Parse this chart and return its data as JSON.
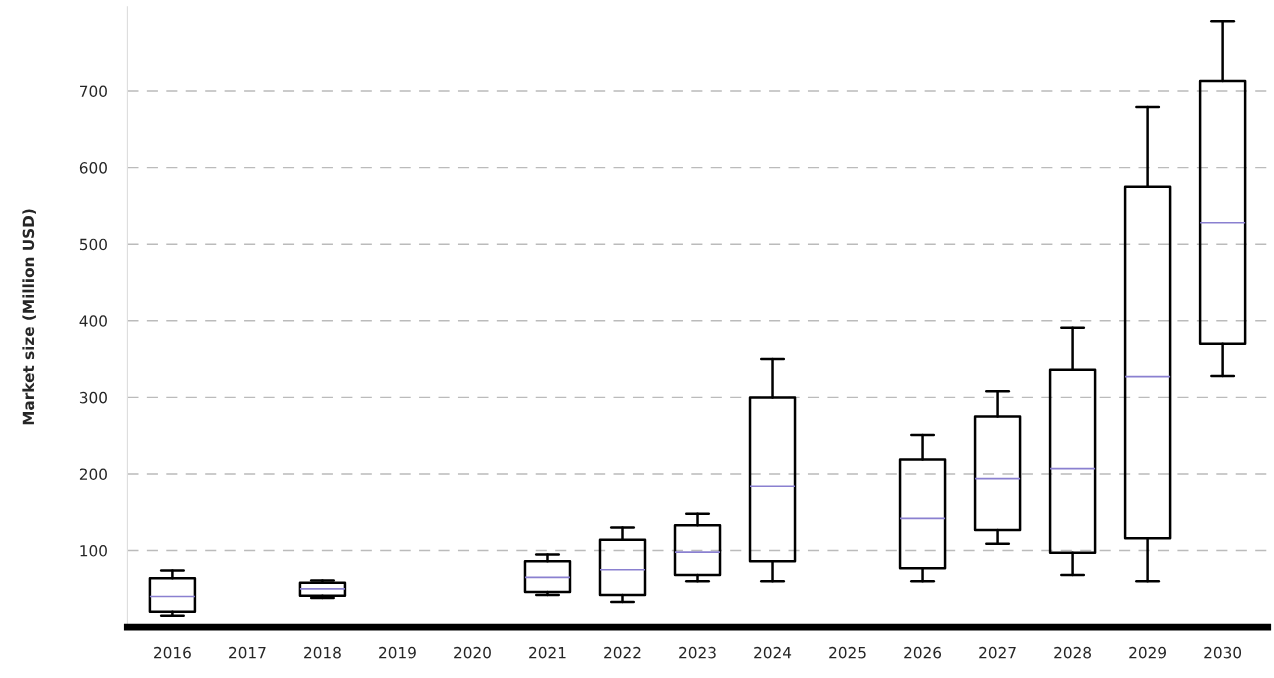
{
  "chart_data": {
    "type": "box",
    "ylabel": "Market size (Million USD)",
    "categories": [
      "2016",
      "2017",
      "2018",
      "2019",
      "2020",
      "2021",
      "2022",
      "2023",
      "2024",
      "2025",
      "2026",
      "2027",
      "2028",
      "2029",
      "2030"
    ],
    "boxes": [
      {
        "low": 15,
        "q1": 20,
        "median": 40,
        "q3": 64,
        "high": 74
      },
      null,
      {
        "low": 38,
        "q1": 41,
        "median": 50,
        "q3": 58,
        "high": 61
      },
      null,
      null,
      {
        "low": 42,
        "q1": 46,
        "median": 65,
        "q3": 86,
        "high": 95
      },
      {
        "low": 33,
        "q1": 42,
        "median": 75,
        "q3": 114,
        "high": 130
      },
      {
        "low": 60,
        "q1": 68,
        "median": 98,
        "q3": 133,
        "high": 148
      },
      {
        "low": 60,
        "q1": 86,
        "median": 184,
        "q3": 300,
        "high": 350
      },
      null,
      {
        "low": 60,
        "q1": 77,
        "median": 142,
        "q3": 219,
        "high": 251
      },
      {
        "low": 109,
        "q1": 127,
        "median": 194,
        "q3": 275,
        "high": 308
      },
      {
        "low": 68,
        "q1": 97,
        "median": 207,
        "q3": 336,
        "high": 391
      },
      {
        "low": 60,
        "q1": 116,
        "median": 327,
        "q3": 575,
        "high": 679
      },
      {
        "low": 328,
        "q1": 370,
        "median": 528,
        "q3": 713,
        "high": 791
      }
    ],
    "color": "#000000",
    "ylim": [
      0,
      810
    ],
    "yticks": [
      100,
      200,
      300,
      400,
      500,
      600,
      700
    ],
    "grid": "y"
  }
}
